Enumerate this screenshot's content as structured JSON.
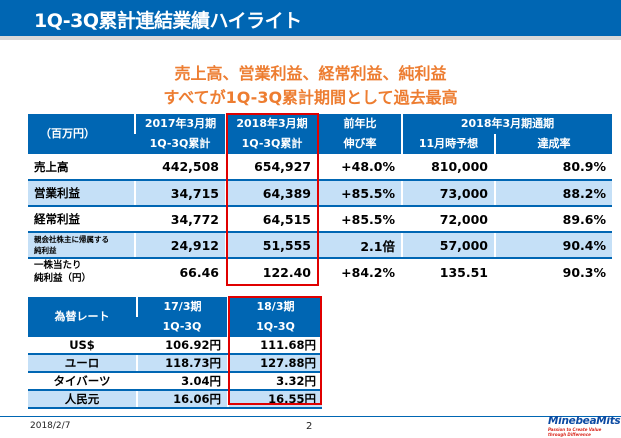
{
  "title": "1Q-3Q累計連結業績ハイライト",
  "headline": [
    "売上高、営業利益、経常利益、純利益",
    "すべてが1Q-3Q累計期間として過去最高"
  ],
  "results": {
    "unit": "（百万円）",
    "col_prev": [
      "2017年3月期",
      "1Q-3Q累計"
    ],
    "col_curr": [
      "2018年3月期",
      "1Q-3Q累計"
    ],
    "col_yoy": [
      "前年比",
      "伸び率"
    ],
    "col_full": "2018年3月期通期",
    "col_forecast": "11月時予想",
    "col_achieve": "達成率",
    "rows": [
      {
        "label": "売上高",
        "prev": "442,508",
        "curr": "654,927",
        "yoy": "+48.0%",
        "forecast": "810,000",
        "achieve": "80.9%"
      },
      {
        "label": "営業利益",
        "prev": "34,715",
        "curr": "64,389",
        "yoy": "+85.5%",
        "forecast": "73,000",
        "achieve": "88.2%"
      },
      {
        "label": "経常利益",
        "prev": "34,772",
        "curr": "64,515",
        "yoy": "+85.5%",
        "forecast": "72,000",
        "achieve": "89.6%"
      },
      {
        "label": [
          "親会社株主に帰属する",
          "純利益"
        ],
        "prev": "24,912",
        "curr": "51,555",
        "yoy": "2.1倍",
        "forecast": "57,000",
        "achieve": "90.4%"
      },
      {
        "label": [
          "一株当たり",
          "純利益（円）"
        ],
        "prev": "66.46",
        "curr": "122.40",
        "yoy": "+84.2%",
        "forecast": "135.51",
        "achieve": "90.3%"
      }
    ]
  },
  "fx": {
    "header": "為替レート",
    "col_prev": [
      "17/3期",
      "1Q-3Q"
    ],
    "col_curr": [
      "18/3期",
      "1Q-3Q"
    ],
    "rows": [
      {
        "label": "US$",
        "prev": "106.92円",
        "curr": "111.68円"
      },
      {
        "label": "ユーロ",
        "prev": "118.73円",
        "curr": "127.88円"
      },
      {
        "label": "タイバーツ",
        "prev": "3.04円",
        "curr": "3.32円"
      },
      {
        "label": "人民元",
        "prev": "16.06円",
        "curr": "16.55円"
      }
    ]
  },
  "footer": {
    "date": "2018/2/7",
    "page": "2",
    "logo": "MinebeaMitsumi",
    "tagline": "Passion to Create Value through Difference"
  },
  "colors": {
    "brand_blue": "#0066b3",
    "accent_orange": "#ed7d31",
    "highlight_red": "#e00000",
    "row_alt": "#c5e0f7"
  }
}
